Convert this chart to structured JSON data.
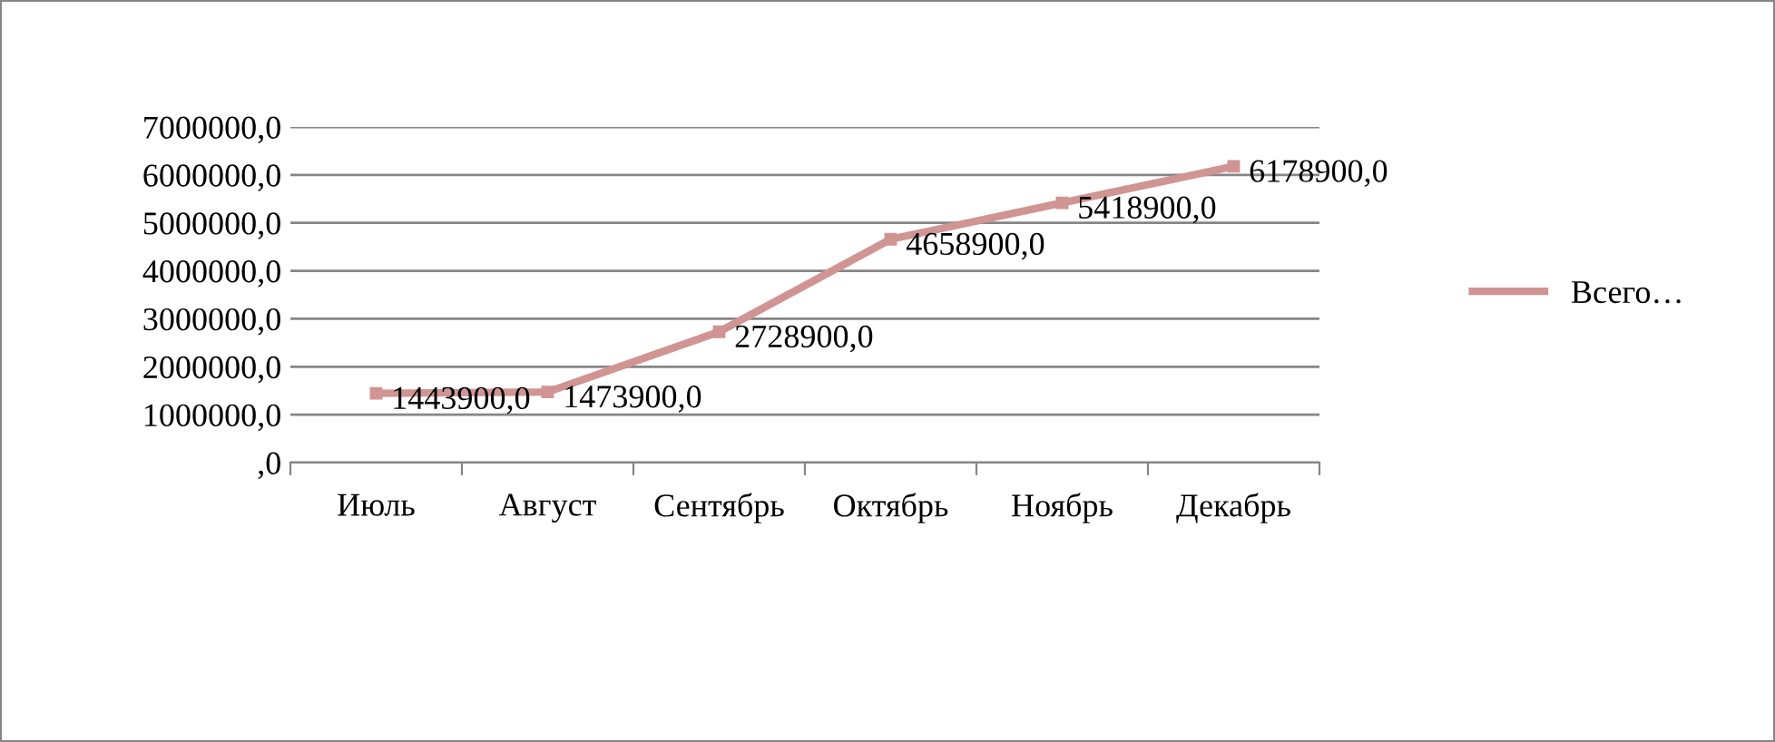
{
  "chart_data": {
    "type": "line",
    "categories": [
      "Июль",
      "Август",
      "Сентябрь",
      "Октябрь",
      "Ноябрь",
      "Декабрь"
    ],
    "series": [
      {
        "name": "Всего…",
        "color": "#d09493",
        "values": [
          1443900,
          1473900,
          2728900,
          4658900,
          5418900,
          6178900
        ],
        "value_labels": [
          "1443900,0",
          "1473900,0",
          "2728900,0",
          "4658900,0",
          "5418900,0",
          "6178900,0"
        ]
      }
    ],
    "ylim": [
      0,
      7000000
    ],
    "yticks": [
      {
        "value": 0,
        "label": ",0"
      },
      {
        "value": 1000000,
        "label": "1000000,0"
      },
      {
        "value": 2000000,
        "label": "2000000,0"
      },
      {
        "value": 3000000,
        "label": "3000000,0"
      },
      {
        "value": 4000000,
        "label": "4000000,0"
      },
      {
        "value": 5000000,
        "label": "5000000,0"
      },
      {
        "value": 6000000,
        "label": "6000000,0"
      },
      {
        "value": 7000000,
        "label": "7000000,0"
      }
    ],
    "grid": "y",
    "legend": "right",
    "marker": "square",
    "line_style": "solid"
  }
}
